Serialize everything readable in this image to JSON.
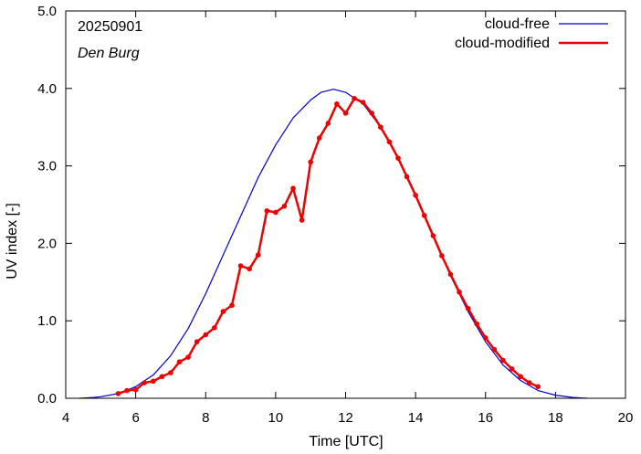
{
  "chart_data": {
    "type": "line",
    "xlabel": "Time  [UTC]",
    "ylabel": "UV index  [-]",
    "xlim": [
      4,
      20
    ],
    "ylim": [
      0,
      5
    ],
    "x_ticks": [
      4,
      6,
      8,
      10,
      12,
      14,
      16,
      18,
      20
    ],
    "y_ticks": [
      0,
      1,
      2,
      3,
      4,
      5
    ],
    "x_tick_labels": [
      "4",
      "6",
      "8",
      "10",
      "12",
      "14",
      "16",
      "18",
      "20"
    ],
    "y_tick_labels": [
      "0.0",
      "1.0",
      "2.0",
      "3.0",
      "4.0",
      "5.0"
    ],
    "annotations": [
      "20250901",
      "Den Burg"
    ],
    "grid": false,
    "legend_position": "top-right",
    "series": [
      {
        "name": "cloud-free",
        "color": "#0000cc",
        "markers": false,
        "points": [
          [
            4.4,
            0.0
          ],
          [
            4.8,
            0.01
          ],
          [
            5.0,
            0.02
          ],
          [
            5.5,
            0.06
          ],
          [
            6.0,
            0.15
          ],
          [
            6.5,
            0.3
          ],
          [
            7.0,
            0.55
          ],
          [
            7.5,
            0.9
          ],
          [
            8.0,
            1.35
          ],
          [
            8.5,
            1.85
          ],
          [
            9.0,
            2.35
          ],
          [
            9.5,
            2.85
          ],
          [
            10.0,
            3.27
          ],
          [
            10.5,
            3.62
          ],
          [
            11.0,
            3.85
          ],
          [
            11.3,
            3.95
          ],
          [
            11.65,
            3.99
          ],
          [
            12.0,
            3.95
          ],
          [
            12.5,
            3.8
          ],
          [
            13.0,
            3.5
          ],
          [
            13.5,
            3.1
          ],
          [
            14.0,
            2.62
          ],
          [
            14.5,
            2.1
          ],
          [
            15.0,
            1.58
          ],
          [
            15.5,
            1.12
          ],
          [
            16.0,
            0.73
          ],
          [
            16.5,
            0.43
          ],
          [
            17.0,
            0.23
          ],
          [
            17.5,
            0.1
          ],
          [
            18.0,
            0.04
          ],
          [
            18.5,
            0.01
          ],
          [
            18.9,
            0.0
          ]
        ]
      },
      {
        "name": "cloud-modified",
        "color": "#ee0000",
        "markers": true,
        "points": [
          [
            5.5,
            0.06
          ],
          [
            5.75,
            0.1
          ],
          [
            6.0,
            0.11
          ],
          [
            6.25,
            0.2
          ],
          [
            6.5,
            0.22
          ],
          [
            6.75,
            0.28
          ],
          [
            7.0,
            0.33
          ],
          [
            7.25,
            0.47
          ],
          [
            7.5,
            0.53
          ],
          [
            7.75,
            0.73
          ],
          [
            8.0,
            0.82
          ],
          [
            8.25,
            0.91
          ],
          [
            8.5,
            1.12
          ],
          [
            8.75,
            1.2
          ],
          [
            9.0,
            1.71
          ],
          [
            9.25,
            1.67
          ],
          [
            9.5,
            1.85
          ],
          [
            9.75,
            2.42
          ],
          [
            10.0,
            2.4
          ],
          [
            10.25,
            2.48
          ],
          [
            10.5,
            2.71
          ],
          [
            10.75,
            2.3
          ],
          [
            11.0,
            3.05
          ],
          [
            11.25,
            3.36
          ],
          [
            11.5,
            3.55
          ],
          [
            11.75,
            3.8
          ],
          [
            12.0,
            3.68
          ],
          [
            12.25,
            3.87
          ],
          [
            12.5,
            3.82
          ],
          [
            12.75,
            3.68
          ],
          [
            13.0,
            3.5
          ],
          [
            13.25,
            3.31
          ],
          [
            13.5,
            3.1
          ],
          [
            13.75,
            2.86
          ],
          [
            14.0,
            2.62
          ],
          [
            14.25,
            2.36
          ],
          [
            14.5,
            2.1
          ],
          [
            14.75,
            1.84
          ],
          [
            15.0,
            1.6
          ],
          [
            15.25,
            1.37
          ],
          [
            15.5,
            1.16
          ],
          [
            15.75,
            0.96
          ],
          [
            16.0,
            0.78
          ],
          [
            16.25,
            0.63
          ],
          [
            16.5,
            0.49
          ],
          [
            16.75,
            0.38
          ],
          [
            17.0,
            0.28
          ],
          [
            17.25,
            0.2
          ],
          [
            17.5,
            0.15
          ]
        ]
      }
    ]
  }
}
